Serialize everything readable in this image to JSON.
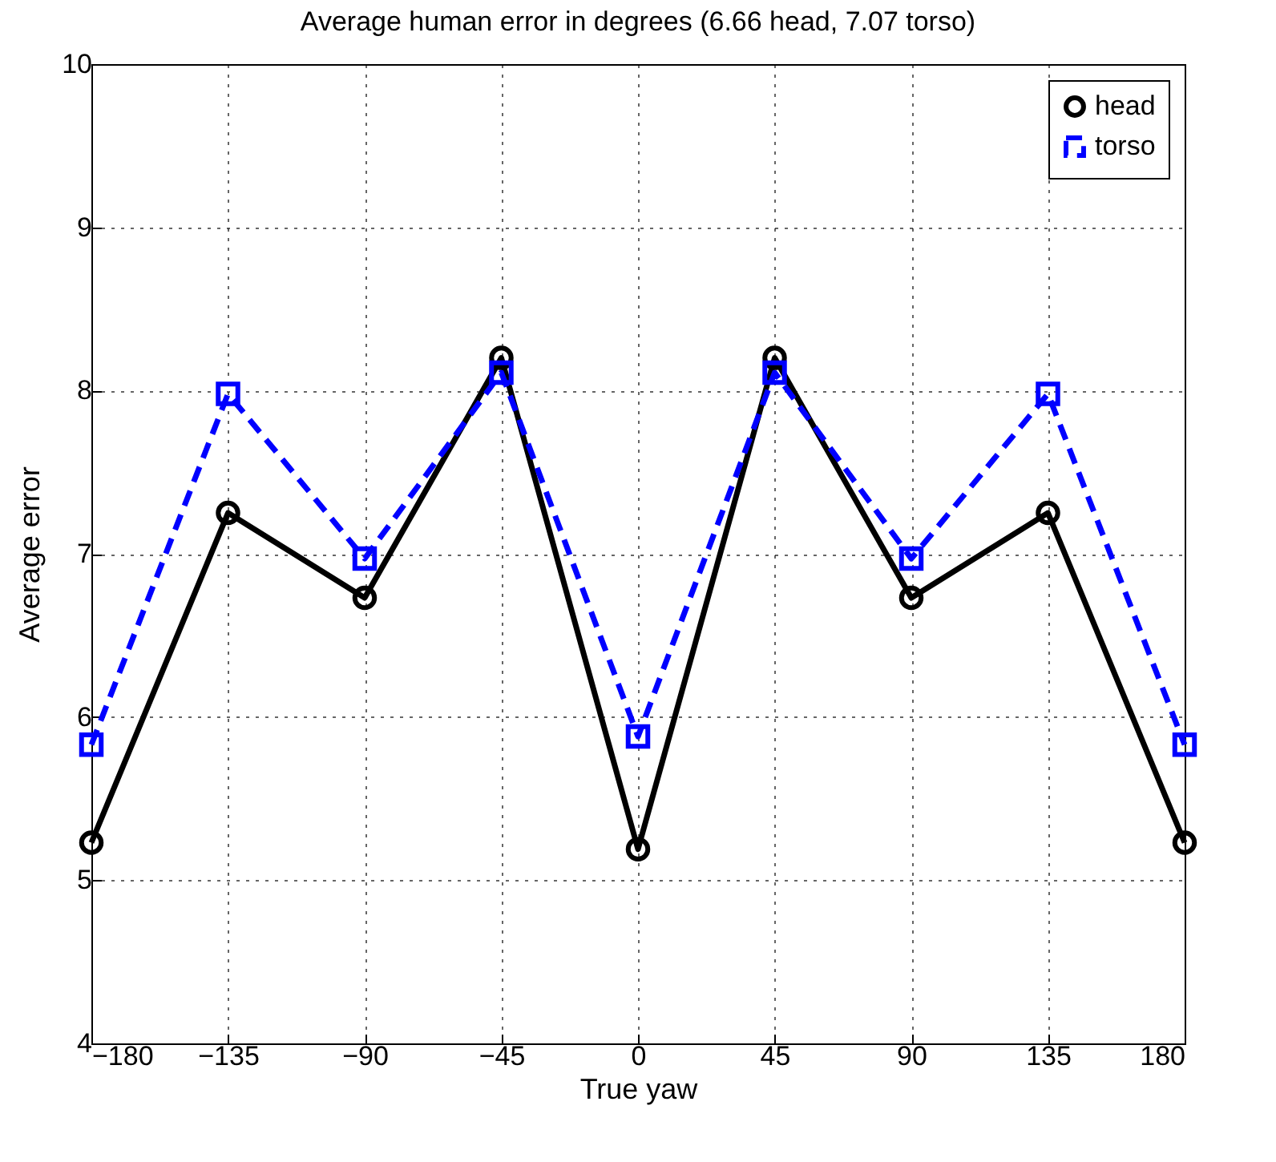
{
  "chart_data": {
    "type": "line",
    "title": "Average human error in degrees (6.66 head, 7.07 torso)",
    "xlabel": "True yaw",
    "ylabel": "Average error",
    "x": [
      -180,
      -135,
      -90,
      -45,
      0,
      45,
      90,
      135,
      180
    ],
    "series": [
      {
        "name": "head",
        "color": "#000000",
        "marker": "circle",
        "line_style": "solid",
        "values": [
          5.23,
          7.25,
          6.73,
          8.2,
          5.19,
          8.2,
          6.73,
          7.25,
          5.23
        ]
      },
      {
        "name": "torso",
        "color": "#0000ff",
        "marker": "square",
        "line_style": "dashed",
        "values": [
          5.83,
          7.98,
          6.97,
          8.11,
          5.88,
          8.11,
          6.97,
          7.98,
          5.83
        ]
      }
    ],
    "xlim": [
      -180,
      180
    ],
    "xticks": [
      {
        "value": -180,
        "label": "−180"
      },
      {
        "value": -135,
        "label": "−135"
      },
      {
        "value": -90,
        "label": "−90"
      },
      {
        "value": -45,
        "label": "−45"
      },
      0,
      45,
      90,
      135,
      180
    ],
    "ylim": [
      4,
      10
    ],
    "yticks": [
      4,
      5,
      6,
      7,
      8,
      9,
      10
    ],
    "grid": true,
    "legend": "top right"
  }
}
